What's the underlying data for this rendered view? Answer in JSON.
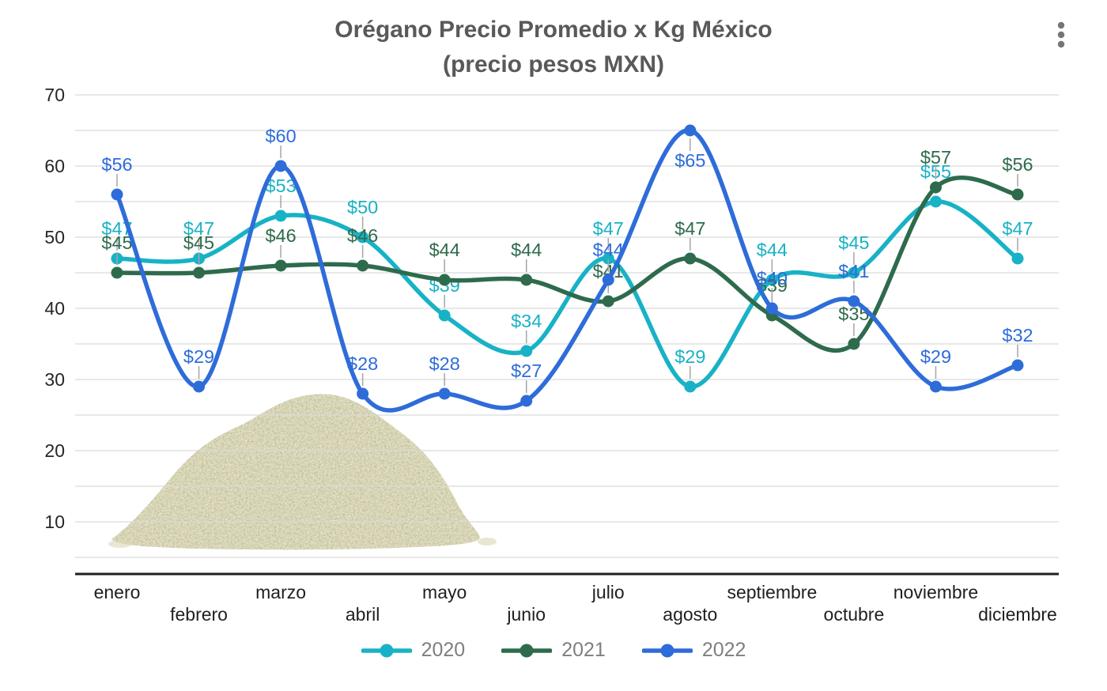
{
  "header": {
    "menu_icon": "kebab-menu-icon"
  },
  "chart_data": {
    "type": "line",
    "title": "Orégano Precio Promedio x Kg México",
    "subtitle": "(precio pesos MXN)",
    "categories": [
      "enero",
      "febrero",
      "marzo",
      "abril",
      "mayo",
      "junio",
      "julio",
      "agosto",
      "septiembre",
      "octubre",
      "noviembre",
      "diciembre"
    ],
    "series": [
      {
        "name": "2020",
        "color": "#18b2c6",
        "values": [
          47,
          47,
          53,
          50,
          39,
          34,
          47,
          29,
          44,
          45,
          55,
          47
        ]
      },
      {
        "name": "2021",
        "color": "#2e6b4c",
        "values": [
          45,
          45,
          46,
          46,
          44,
          44,
          41,
          47,
          39,
          35,
          57,
          56
        ]
      },
      {
        "name": "2022",
        "color": "#2e6cd9",
        "values": [
          56,
          29,
          60,
          28,
          28,
          27,
          44,
          65,
          40,
          41,
          29,
          32
        ]
      }
    ],
    "label_prefix": "$",
    "y_ticks": [
      70,
      60,
      50,
      40,
      30,
      20,
      10
    ],
    "y_minor_step": 5,
    "ylim": [
      5,
      70
    ],
    "grid": true,
    "smooth_lines": true,
    "legend_position": "bottom",
    "label_below": [
      {
        "series": "2022",
        "category": "agosto"
      }
    ],
    "decoration": "oregano-pile-photo"
  },
  "style": {
    "background": "#ffffff",
    "title_color": "#595959",
    "axis_text_color": "#262626",
    "legend_text_color": "#7f7f7f",
    "gridline_color": "#d9d9d9",
    "leader_line_color": "#a6a6a6",
    "axis_line_color": "#1f1f1f",
    "menu_dots_color": "#757575",
    "oregano_base_color": "#d2cfa6"
  }
}
